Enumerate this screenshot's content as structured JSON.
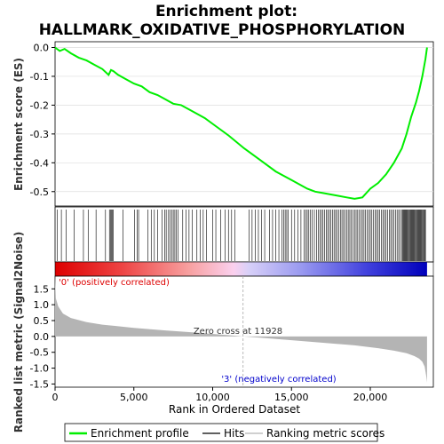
{
  "chart_data": {
    "type": "line",
    "title": "Enrichment plot:",
    "subtitle": "HALLMARK_OXIDATIVE_PHOSPHORYLATION",
    "colors": {
      "es_line": "#00ee00",
      "hits": "#000000",
      "metric_fill": "#b4b4b4",
      "pos_band": "#dd0000",
      "neg_band": "#0000cc",
      "zero_line": "#aaaaaa"
    },
    "es_panel": {
      "ylabel": "Enrichment score (ES)",
      "ylim": [
        -0.55,
        0.02
      ],
      "yticks": [
        "0.0",
        "-0.1",
        "-0.2",
        "-0.3",
        "-0.4",
        "-0.5"
      ],
      "ytick_values": [
        0.0,
        -0.1,
        -0.2,
        -0.3,
        -0.4,
        -0.5
      ],
      "grid": true,
      "series": [
        {
          "name": "Enrichment profile",
          "x": [
            0,
            300,
            600,
            1000,
            1500,
            2000,
            2500,
            3000,
            3400,
            3550,
            3700,
            4000,
            4500,
            5000,
            5500,
            6000,
            6500,
            7000,
            7500,
            8000,
            8500,
            9000,
            9500,
            10000,
            11000,
            12000,
            13000,
            14000,
            15000,
            16000,
            16500,
            17000,
            17500,
            18000,
            18500,
            19000,
            19500,
            20000,
            20500,
            21000,
            21500,
            22000,
            22300,
            22600,
            22900,
            23100,
            23300,
            23500,
            23600
          ],
          "y": [
            0.0,
            -0.012,
            -0.005,
            -0.02,
            -0.035,
            -0.045,
            -0.06,
            -0.075,
            -0.095,
            -0.078,
            -0.082,
            -0.095,
            -0.11,
            -0.125,
            -0.135,
            -0.155,
            -0.165,
            -0.18,
            -0.195,
            -0.2,
            -0.215,
            -0.23,
            -0.245,
            -0.265,
            -0.305,
            -0.35,
            -0.39,
            -0.43,
            -0.46,
            -0.49,
            -0.5,
            -0.505,
            -0.51,
            -0.515,
            -0.52,
            -0.525,
            -0.52,
            -0.49,
            -0.47,
            -0.44,
            -0.4,
            -0.35,
            -0.3,
            -0.24,
            -0.19,
            -0.15,
            -0.1,
            -0.04,
            0.0
          ]
        }
      ]
    },
    "hits": [
      150,
      400,
      700,
      1200,
      1800,
      2100,
      2600,
      3200,
      3450,
      3520,
      3580,
      3640,
      3700,
      4300,
      5050,
      5200,
      5300,
      5900,
      6100,
      6300,
      6500,
      6800,
      6950,
      7050,
      7200,
      7300,
      7400,
      7500,
      7600,
      7700,
      7800,
      8100,
      8300,
      8500,
      8700,
      9000,
      9200,
      9400,
      9600,
      10000,
      10200,
      10500,
      10800,
      11000,
      11200,
      11400,
      12300,
      12500,
      12700,
      12900,
      13100,
      13300,
      13600,
      13800,
      14000,
      14200,
      14400,
      14500,
      14600,
      14700,
      14800,
      15000,
      15200,
      15400,
      15600,
      15800,
      15900,
      16000,
      16100,
      16200,
      16300,
      16450,
      16600,
      16700,
      16800,
      16900,
      17000,
      17100,
      17200,
      17300,
      17400,
      17500,
      17600,
      17700,
      17800,
      17900,
      18000,
      18100,
      18200,
      18300,
      18400,
      18500,
      18600,
      18700,
      18800,
      18900,
      19000,
      19100,
      19200,
      19300,
      19400,
      19500,
      19600,
      19700,
      19800,
      19900,
      20000,
      20100,
      20200,
      20300,
      20400,
      20500,
      20600,
      20700,
      20800,
      20900,
      21000,
      21100,
      21200,
      21300,
      21400,
      21500,
      21600,
      21700,
      21800,
      21900,
      22000,
      22050,
      22100,
      22150,
      22200,
      22250,
      22300,
      22350,
      22400,
      22450,
      22500,
      22550,
      22600,
      22650,
      22700,
      22750,
      22800,
      22850,
      22900,
      22950,
      23000,
      23050,
      23100,
      23150,
      23200,
      23250,
      23300,
      23350,
      23400,
      23450,
      23500
    ],
    "metric_panel": {
      "ylabel": "Ranked list metric (Signal2Noise)",
      "ylim": [
        -1.6,
        1.9
      ],
      "yticks": [
        "1.5",
        "1.0",
        "0.5",
        "0.0",
        "-0.5",
        "-1.0",
        "-1.5"
      ],
      "ytick_values": [
        1.5,
        1.0,
        0.5,
        0.0,
        -0.5,
        -1.0,
        -1.5
      ],
      "x": [
        0,
        50,
        200,
        500,
        1000,
        2000,
        3000,
        5000,
        7000,
        9000,
        10500,
        11928,
        13000,
        15000,
        17000,
        19000,
        20500,
        21500,
        22300,
        22800,
        23100,
        23300,
        23450,
        23550,
        23600
      ],
      "y": [
        1.95,
        1.2,
        0.95,
        0.72,
        0.58,
        0.45,
        0.37,
        0.27,
        0.19,
        0.12,
        0.06,
        0.0,
        -0.04,
        -0.12,
        -0.2,
        -0.28,
        -0.37,
        -0.45,
        -0.53,
        -0.62,
        -0.7,
        -0.8,
        -0.95,
        -1.25,
        -1.45
      ],
      "zero_cross_label": "Zero cross at 11928",
      "zero_cross": 11928,
      "pos_label": "'0' (positively correlated)",
      "neg_label": "'3' (negatively correlated)"
    },
    "xaxis": {
      "xlabel": "Rank in Ordered Dataset",
      "xlim": [
        0,
        24000
      ],
      "xticks": [
        "0",
        "5,000",
        "10,000",
        "15,000",
        "20,000"
      ],
      "xtick_values": [
        0,
        5000,
        10000,
        15000,
        20000
      ],
      "max_rank": 23600
    },
    "legend": {
      "placement": "bottom",
      "entries": [
        "Enrichment profile",
        "Hits",
        "Ranking metric scores"
      ]
    }
  }
}
